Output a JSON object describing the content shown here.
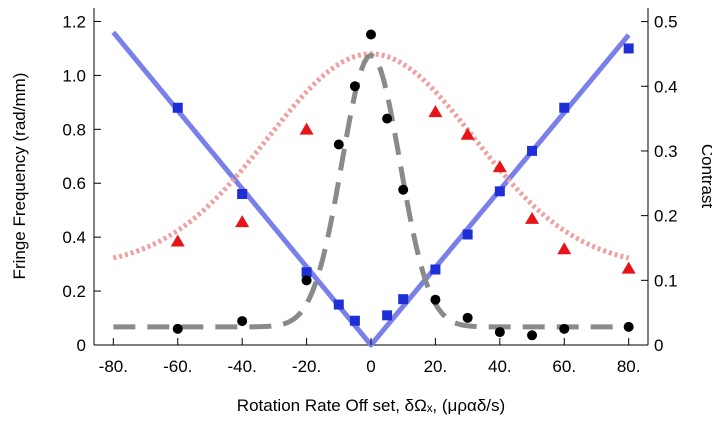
{
  "chart_data": {
    "type": "scatter",
    "xlabel": "Rotation Rate Off set, δΩₓ, (μραδ/s)",
    "ylabel": "Fringe Frequency (rad/mm)",
    "y2label": "Contrast",
    "xlim": [
      -86,
      86
    ],
    "ylim": [
      0,
      1.25
    ],
    "y2lim": [
      0,
      0.521
    ],
    "x_ticks": [
      -80,
      -60,
      -40,
      -20,
      0,
      20,
      40,
      60,
      80
    ],
    "x_tick_labels": [
      "-80.",
      "-60.",
      "-40.",
      "-20.",
      "0",
      "20.",
      "40.",
      "60.",
      "80."
    ],
    "y_ticks": [
      0,
      0.2,
      0.4,
      0.6,
      0.8,
      1.0,
      1.2
    ],
    "y_tick_labels": [
      "0",
      "0.2",
      "0.4",
      "0.6",
      "0.8",
      "1.0",
      "1.2"
    ],
    "y2_ticks": [
      0,
      0.1,
      0.2,
      0.3,
      0.4,
      0.5
    ],
    "y2_tick_labels": [
      "0",
      "0.1",
      "0.2",
      "0.3",
      "0.4",
      "0.5"
    ],
    "grid": false,
    "series": [
      {
        "kind": "points",
        "axis": "left",
        "marker": "square",
        "color": "#1f2fd6",
        "x": [
          -60,
          -40,
          -20,
          -10,
          -5,
          5,
          10,
          20,
          30,
          40,
          50,
          60,
          80
        ],
        "y": [
          0.88,
          0.56,
          0.27,
          0.15,
          0.09,
          0.11,
          0.17,
          0.28,
          0.41,
          0.57,
          0.72,
          0.88,
          1.1
        ]
      },
      {
        "kind": "points",
        "axis": "right",
        "marker": "circle",
        "color": "#000000",
        "x": [
          -60,
          -40,
          -20,
          -10,
          -5,
          0,
          5,
          10,
          20,
          30,
          40,
          50,
          60,
          80
        ],
        "y": [
          0.025,
          0.037,
          0.1,
          0.31,
          0.4,
          0.48,
          0.35,
          0.24,
          0.07,
          0.042,
          0.02,
          0.015,
          0.025,
          0.028
        ]
      },
      {
        "kind": "points",
        "axis": "right",
        "marker": "triangle",
        "color": "#e8141a",
        "x": [
          -60,
          -40,
          -20,
          20,
          30,
          40,
          50,
          60,
          80
        ],
        "y": [
          0.16,
          0.19,
          0.333,
          0.36,
          0.325,
          0.275,
          0.195,
          0.148,
          0.118
        ]
      },
      {
        "kind": "line",
        "axis": "left",
        "style": "solid",
        "color": "#7a80ea",
        "x": [
          -80,
          0,
          80
        ],
        "y": [
          1.16,
          0.0,
          1.15
        ]
      },
      {
        "kind": "line",
        "axis": "right",
        "style": "dotted",
        "color": "#f0a0a0",
        "model": "gaussian_plus_offset",
        "offset": 0.12,
        "amplitude": 0.33,
        "sigma": 32
      },
      {
        "kind": "line",
        "axis": "right",
        "style": "dashed",
        "color": "#8a8a8a",
        "model": "gaussian_plus_offset",
        "offset": 0.028,
        "amplitude": 0.42,
        "sigma": 9
      }
    ]
  }
}
